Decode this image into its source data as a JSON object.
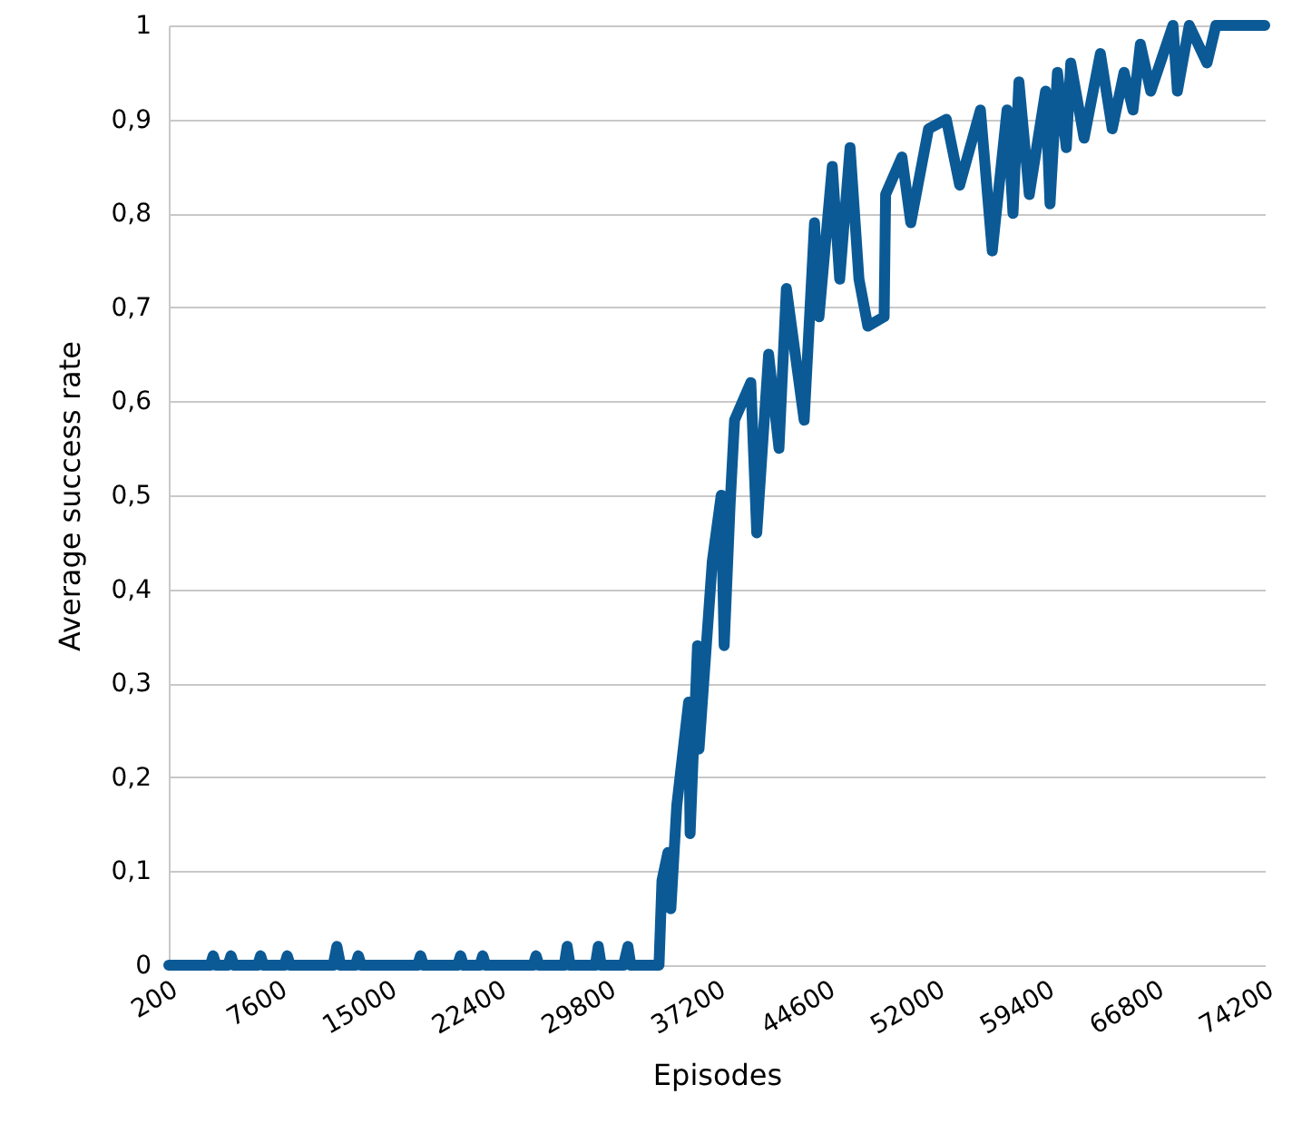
{
  "chart_data": {
    "type": "line",
    "xlabel": "Episodes",
    "ylabel": "Average success rate",
    "xlim": [
      200,
      74200
    ],
    "xticks": [
      200,
      7600,
      15000,
      22400,
      29800,
      37200,
      44600,
      52000,
      59400,
      66800,
      74200
    ],
    "ylim": [
      0,
      1
    ],
    "yticks": [
      0,
      {
        "value": 0.1,
        "label": "0,1"
      },
      {
        "value": 0.2,
        "label": "0,2"
      },
      {
        "value": 0.3,
        "label": "0,3"
      },
      {
        "value": 0.4,
        "label": "0,4"
      },
      {
        "value": 0.5,
        "label": "0,5"
      },
      {
        "value": 0.6,
        "label": "0,6"
      },
      {
        "value": 0.7,
        "label": "0,7"
      },
      {
        "value": 0.8,
        "label": "0,8"
      },
      {
        "value": 0.9,
        "label": "0,9"
      },
      1
    ],
    "grid": "y",
    "marker": "none",
    "line_style": "solid",
    "series": [
      {
        "color": "#0b5a96",
        "x": [
          200,
          3000,
          3200,
          3400,
          4200,
          4400,
          4600,
          6200,
          6400,
          6600,
          8000,
          8200,
          8400,
          11300,
          11550,
          11800,
          12800,
          13000,
          13200,
          17000,
          17200,
          17400,
          19700,
          19900,
          20100,
          21200,
          21400,
          21600,
          24800,
          25000,
          25200,
          26900,
          27100,
          27300,
          29000,
          29200,
          29400,
          30900,
          31200,
          31400,
          33300,
          33500,
          33900,
          34100,
          34500,
          35300,
          35400,
          35900,
          36000,
          36900,
          37500,
          37700,
          38100,
          38400,
          39500,
          39900,
          40700,
          41400,
          41900,
          43100,
          43800,
          44100,
          45000,
          45500,
          46200,
          46800,
          47400,
          48500,
          48600,
          49700,
          50300,
          51500,
          52700,
          53600,
          55000,
          55800,
          56800,
          57200,
          57600,
          58300,
          59400,
          59700,
          60200,
          60800,
          61100,
          62000,
          63100,
          63900,
          64700,
          65300,
          65800,
          66500,
          68000,
          68300,
          69100,
          70300,
          70900,
          74200
        ],
        "values": [
          0,
          0,
          0.01,
          0,
          0,
          0.01,
          0,
          0,
          0.01,
          0,
          0,
          0.01,
          0,
          0,
          0.02,
          0,
          0,
          0.01,
          0,
          0,
          0.01,
          0,
          0,
          0.01,
          0,
          0,
          0.01,
          0,
          0,
          0.01,
          0,
          0,
          0.02,
          0,
          0,
          0.02,
          0,
          0,
          0.02,
          0,
          0,
          0.09,
          0.12,
          0.06,
          0.17,
          0.28,
          0.14,
          0.34,
          0.23,
          0.43,
          0.5,
          0.34,
          0.49,
          0.58,
          0.62,
          0.46,
          0.65,
          0.55,
          0.72,
          0.58,
          0.79,
          0.69,
          0.85,
          0.73,
          0.87,
          0.73,
          0.68,
          0.69,
          0.82,
          0.86,
          0.79,
          0.89,
          0.9,
          0.83,
          0.91,
          0.76,
          0.91,
          0.8,
          0.94,
          0.82,
          0.93,
          0.81,
          0.95,
          0.87,
          0.96,
          0.88,
          0.97,
          0.89,
          0.95,
          0.91,
          0.98,
          0.93,
          1,
          0.93,
          1,
          0.96,
          1,
          1
        ]
      }
    ]
  }
}
